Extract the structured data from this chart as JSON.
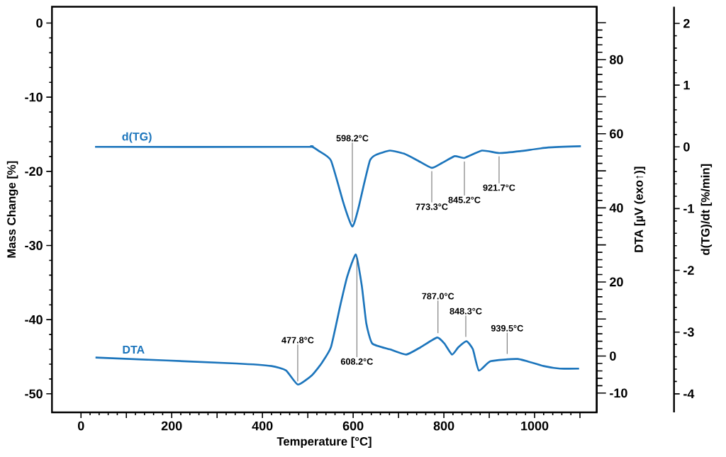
{
  "chart_data": {
    "type": "line",
    "xlabel": "Temperature [°C]",
    "ylabel": "Mass Change [%]",
    "y2label": "DTA [µV (exo↑)]",
    "y3label": "d(TG)/dt [%/min]",
    "xlim": [
      -64,
      1137
    ],
    "xticks": [
      0,
      {
        "value": 100,
        "label": null
      },
      200,
      {
        "value": 300,
        "label": null
      },
      400,
      {
        "value": 500,
        "label": null
      },
      600,
      {
        "value": 700,
        "label": null
      },
      800,
      {
        "value": 900,
        "label": null
      },
      1000,
      {
        "value": 1100,
        "label": null
      }
    ],
    "ylim": [
      -52.5,
      2.2
    ],
    "yticks": [
      -50,
      -40,
      -30,
      -20,
      -10,
      0
    ],
    "y2lim": [
      -15.2,
      94.3
    ],
    "y2ticks": [
      -10,
      0,
      {
        "value": 10,
        "label": null
      },
      20,
      {
        "value": 30,
        "label": null
      },
      40,
      {
        "value": 50,
        "label": null
      },
      60,
      {
        "value": 70,
        "label": null
      },
      80,
      {
        "value": 90,
        "label": null
      }
    ],
    "y3lim": [
      -4.3,
      2.27
    ],
    "y3ticks": [
      -4,
      -3,
      -2,
      -1,
      0,
      1,
      2
    ],
    "series": [
      {
        "name": "d(TG)",
        "color": "#1c75bc",
        "axis": "y3",
        "x": [
          31,
          488,
          507,
          525,
          551,
          577,
          590,
          598,
          603,
          613,
          624,
          637,
          650,
          681,
          712,
          742,
          773,
          796,
          824,
          845,
          884,
          922,
          968,
          1030,
          1102
        ],
        "values": [
          0,
          0,
          0.01,
          -0.07,
          -0.22,
          -0.87,
          -1.16,
          -1.29,
          -1.22,
          -0.95,
          -0.6,
          -0.22,
          -0.13,
          -0.06,
          -0.11,
          -0.22,
          -0.34,
          -0.26,
          -0.15,
          -0.18,
          -0.06,
          -0.1,
          -0.07,
          -0.01,
          0.01
        ]
      },
      {
        "name": "DTA",
        "color": "#1c75bc",
        "axis": "y2",
        "x": [
          32,
          342,
          420,
          452,
          478,
          509,
          530,
          551,
          572,
          587,
          606,
          619,
          629,
          642,
          681,
          717,
          749,
          785,
          801,
          818,
          832,
          850,
          864,
          877,
          903,
          963,
          1020,
          1056,
          1098
        ],
        "values": [
          -0.4,
          -2.0,
          -2.7,
          -3.9,
          -7.7,
          -5.2,
          -2.0,
          2.4,
          13.9,
          21.5,
          27.4,
          19.0,
          8.8,
          3.4,
          1.8,
          0.4,
          2.4,
          5.0,
          3.4,
          0.4,
          2.4,
          4.0,
          1.8,
          -3.9,
          -1.4,
          -0.8,
          -2.7,
          -3.4,
          -3.4
        ]
      }
    ],
    "annotations": [
      {
        "text": "598.2°C",
        "x": 598.2,
        "y": -27.3
      },
      {
        "text": "773.3°C",
        "x": 773.3,
        "y": -19.5
      },
      {
        "text": "845.2°C",
        "x": 845.2,
        "y": -18.2
      },
      {
        "text": "921.7°C",
        "x": 921.7,
        "y": -17.5
      },
      {
        "text": "477.8°C",
        "x": 477.8,
        "y": -48.8
      },
      {
        "text": "608.2°C",
        "x": 608.2,
        "y": -31.2
      },
      {
        "text": "787.0°C",
        "x": 787.0,
        "y": -42.3
      },
      {
        "text": "848.3°C",
        "x": 848.3,
        "y": -42.8
      },
      {
        "text": "939.5°C",
        "x": 939.5,
        "y": -45.1
      }
    ]
  }
}
